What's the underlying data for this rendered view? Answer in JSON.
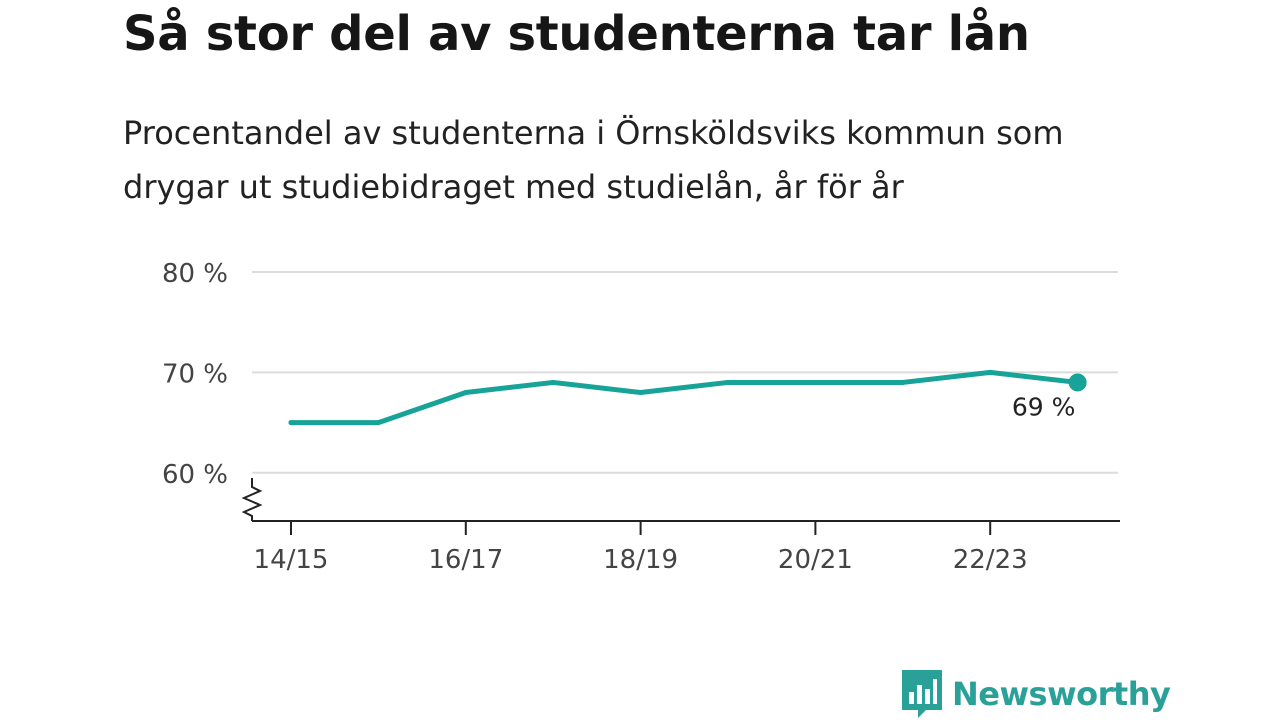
{
  "header": {
    "title": "Så stor del av studenterna tar lån",
    "subtitle": "Procentandel av studenterna i Örnsköldsviks kommun som drygar ut studiebidraget med studielån, år för år"
  },
  "brand": {
    "name": "Newsworthy",
    "icon": "bar-chart-speech-bubble-icon",
    "color": "#2aa198"
  },
  "chart_data": {
    "type": "line",
    "title": "Så stor del av studenterna tar lån",
    "subtitle": "Procentandel av studenterna i Örnsköldsviks kommun som drygar ut studiebidraget med studielån, år för år",
    "x": [
      "14/15",
      "15/16",
      "16/17",
      "17/18",
      "18/19",
      "19/20",
      "20/21",
      "21/22",
      "22/23",
      "23/24"
    ],
    "x_tick_labels": [
      "14/15",
      "16/17",
      "18/19",
      "20/21",
      "22/23"
    ],
    "series": [
      {
        "values": [
          65,
          65,
          68,
          69,
          68,
          69,
          69,
          69,
          70,
          69
        ],
        "color": "#17a398"
      }
    ],
    "y_ticks": [
      60,
      70,
      80
    ],
    "y_tick_labels": [
      "60 %",
      "70 %",
      "80 %"
    ],
    "ylim": [
      55.2,
      80
    ],
    "y_axis_break": true,
    "grid": true,
    "end_label": "69 %",
    "xlabel": "",
    "ylabel": ""
  }
}
